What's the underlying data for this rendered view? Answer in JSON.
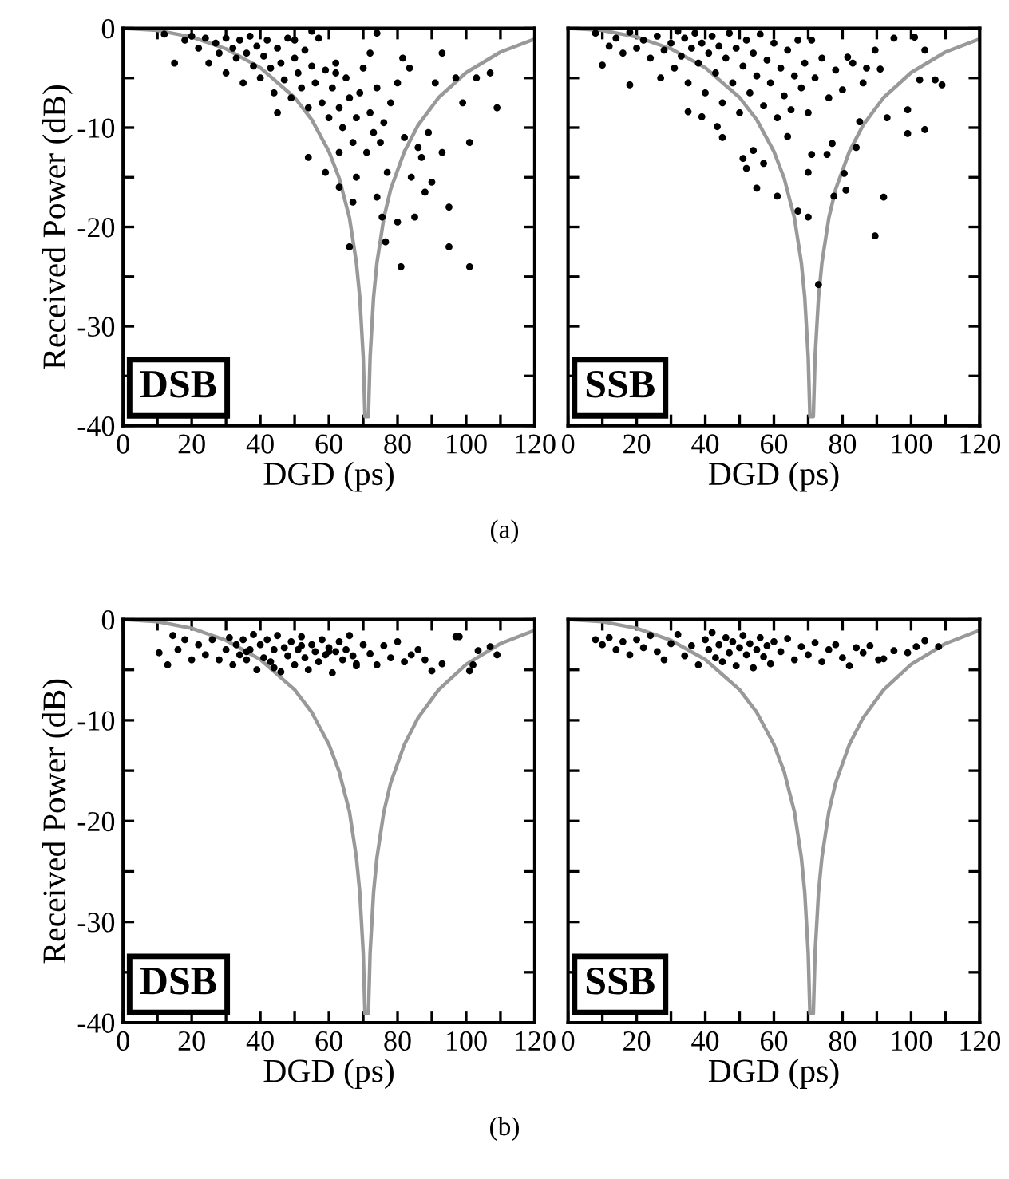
{
  "chart_data": [
    {
      "type": "scatter",
      "xlabel": "DGD (ps)",
      "ylabel": "Received Power (dB)",
      "xlim": [
        0,
        120
      ],
      "ylim": [
        -40,
        0
      ],
      "xticks": [
        0,
        {
          "value": 10,
          "label": null
        },
        20,
        {
          "value": 30,
          "label": null
        },
        40,
        {
          "value": 50,
          "label": null
        },
        60,
        {
          "value": 70,
          "label": null
        },
        80,
        {
          "value": 90,
          "label": null
        },
        100,
        {
          "value": 110,
          "label": null
        },
        120
      ],
      "yticks": [
        -40,
        {
          "value": -35,
          "label": null
        },
        -30,
        {
          "value": -25,
          "label": null
        },
        -20,
        {
          "value": -15,
          "label": null
        },
        -10,
        {
          "value": -5,
          "label": null
        },
        0
      ],
      "annotations": [
        "DSB",
        "(a)"
      ],
      "series": [
        {
          "type": "line",
          "color": "#999999",
          "line_style": "solid",
          "x": [
            0,
            10,
            20,
            30,
            40,
            50,
            55,
            60,
            63,
            66,
            68,
            69,
            70,
            70.5,
            71.5,
            72,
            73,
            74,
            76,
            78,
            82,
            86,
            92,
            100,
            110,
            120
          ],
          "values": [
            0,
            -0.21,
            -0.88,
            -2.07,
            -3.97,
            -6.97,
            -9.21,
            -12.4,
            -15.1,
            -19.1,
            -23.6,
            -27.1,
            -33.1,
            -39.1,
            -39.1,
            -33.1,
            -27.1,
            -23.6,
            -19.1,
            -16.2,
            -12.4,
            -9.75,
            -6.97,
            -4.46,
            -2.39,
            -1.07
          ]
        },
        {
          "color": "#000000",
          "marker": "circle",
          "x": [
            12,
            18,
            20,
            22,
            24,
            25,
            27,
            28,
            30,
            30,
            32,
            33,
            34,
            35,
            36,
            37,
            38,
            39,
            40,
            41,
            42,
            43,
            44,
            45,
            46,
            47,
            48,
            49,
            50,
            51,
            52,
            53,
            54,
            55,
            56,
            57,
            58,
            59,
            60,
            61,
            62,
            63,
            64,
            65,
            66,
            67,
            68,
            69,
            70,
            71,
            72,
            73,
            74,
            75,
            76,
            78,
            63,
            62,
            55,
            50,
            15,
            45,
            54,
            59,
            63,
            66,
            67,
            68,
            74,
            72,
            74,
            75.5,
            76.5,
            77,
            80,
            81,
            81.5,
            80,
            83.5,
            84,
            85,
            86,
            87,
            88,
            89,
            90,
            91,
            93,
            93,
            95,
            95,
            97,
            99,
            101,
            101,
            103,
            107,
            109,
            82
          ],
          "values": [
            -0.6,
            -1.2,
            -0.8,
            -2,
            -1,
            -3.5,
            -1.5,
            -2.5,
            -1,
            -4.5,
            -2,
            -3,
            -1.2,
            -5.5,
            -2.5,
            -0.8,
            -3.8,
            -1.8,
            -5,
            -2.8,
            -1.2,
            -4,
            -6.5,
            -2,
            -3.5,
            -5.2,
            -1,
            -7,
            -3,
            -4.5,
            -6,
            -2.2,
            -8,
            -3.8,
            -5.5,
            -1,
            -7.5,
            -4.2,
            -9,
            -6,
            -3.5,
            -8,
            -10,
            -5,
            -7,
            -11.5,
            -9,
            -6.5,
            -4,
            -12.5,
            -8.5,
            -10.5,
            -6,
            -11.5,
            -9.5,
            -7.5,
            -12.5,
            -4.5,
            -0.3,
            -1.2,
            -3.5,
            -8.5,
            -13,
            -14.5,
            -16,
            -22,
            -17.5,
            -15,
            -0.5,
            -2.5,
            -17,
            -19,
            -21.5,
            -14.5,
            -19.5,
            -24,
            -3,
            -5.5,
            -4,
            -15,
            -19,
            -12,
            -13,
            -16.5,
            -10.5,
            -15.5,
            -5.5,
            -12.5,
            -2.5,
            -18,
            -22,
            -5,
            -7.5,
            -24,
            -11.5,
            -5,
            -4.5,
            -8,
            -11
          ]
        }
      ]
    },
    {
      "type": "scatter",
      "xlabel": "DGD (ps)",
      "xlim": [
        0,
        120
      ],
      "ylim": [
        -40,
        0
      ],
      "tick_labels": "x",
      "xticks": [
        0,
        {
          "value": 10,
          "label": null
        },
        20,
        {
          "value": 30,
          "label": null
        },
        40,
        {
          "value": 50,
          "label": null
        },
        60,
        {
          "value": 70,
          "label": null
        },
        80,
        {
          "value": 90,
          "label": null
        },
        100,
        {
          "value": 110,
          "label": null
        },
        120
      ],
      "yticks": [
        -40,
        {
          "value": -35,
          "label": null
        },
        -30,
        {
          "value": -25,
          "label": null
        },
        -20,
        {
          "value": -15,
          "label": null
        },
        -10,
        {
          "value": -5,
          "label": null
        },
        0
      ],
      "annotations": [
        "SSB"
      ],
      "series": [
        {
          "type": "line",
          "color": "#999999",
          "line_style": "solid",
          "x": [
            0,
            10,
            20,
            30,
            40,
            50,
            55,
            60,
            63,
            66,
            68,
            69,
            70,
            70.5,
            71.5,
            72,
            73,
            74,
            76,
            78,
            82,
            86,
            92,
            100,
            110,
            120
          ],
          "values": [
            0,
            -0.21,
            -0.88,
            -2.07,
            -3.97,
            -6.97,
            -9.21,
            -12.4,
            -15.1,
            -19.1,
            -23.6,
            -27.1,
            -33.1,
            -39.1,
            -39.1,
            -33.1,
            -27.1,
            -23.6,
            -19.1,
            -16.2,
            -12.4,
            -9.75,
            -6.97,
            -4.46,
            -2.39,
            -1.07
          ]
        },
        {
          "color": "#000000",
          "marker": "circle",
          "x": [
            8,
            10,
            12,
            14,
            16,
            18,
            20,
            22,
            24,
            26,
            27,
            28,
            30,
            31,
            32,
            33,
            34,
            35,
            36,
            37,
            38,
            39,
            40,
            41,
            42,
            43,
            44,
            45,
            46,
            47,
            48,
            49,
            50,
            51,
            52,
            53,
            54,
            55,
            56,
            57,
            58,
            59,
            60,
            61,
            62,
            63,
            64,
            65,
            66,
            67,
            68,
            69,
            70,
            72,
            74,
            76,
            78,
            80,
            83,
            86,
            18,
            35,
            39,
            43.5,
            45,
            51,
            52,
            54,
            55,
            57,
            61,
            64,
            67,
            70,
            70,
            73,
            71,
            75.5,
            77,
            81,
            80.5,
            77.5,
            84,
            89.5,
            92,
            85,
            93,
            99,
            99,
            104,
            107,
            109,
            102.5,
            104,
            101,
            95,
            89.5,
            87,
            91,
            81.5,
            71
          ],
          "values": [
            -0.5,
            -3.7,
            -1.8,
            -1,
            -2.5,
            -0.4,
            -2,
            -1.2,
            -3,
            -0.8,
            -5,
            -2.2,
            -1.5,
            -4,
            -0.3,
            -2.8,
            -1,
            -5.5,
            -2,
            -0.5,
            -3.5,
            -1.5,
            -6.5,
            -2.5,
            -0.8,
            -4.5,
            -1.8,
            -7.5,
            -3,
            -0.5,
            -5.5,
            -2,
            -8.5,
            -3.8,
            -1.2,
            -6.5,
            -2.5,
            -4.8,
            -0.6,
            -7.8,
            -3.2,
            -5.5,
            -1.5,
            -9,
            -4,
            -6.8,
            -2.2,
            -8.2,
            -4.8,
            -1.2,
            -6,
            -3.5,
            -8.5,
            -5,
            -3,
            -7,
            -4.2,
            -6.2,
            -3.5,
            -5.5,
            -5.7,
            -8.4,
            -8.9,
            -9.9,
            -11,
            -13.1,
            -14.1,
            -12.3,
            -16.1,
            -13.6,
            -16.9,
            -10.9,
            -18.4,
            -19,
            -14.5,
            -25.8,
            -12.7,
            -12.7,
            -11.6,
            -16.3,
            -14.6,
            -16.9,
            -12,
            -20.9,
            -17,
            -9.4,
            -9,
            -8.2,
            -10.6,
            -10.2,
            -5.2,
            -5.7,
            -5.2,
            -2.2,
            -0.9,
            -1,
            -2.2,
            -4,
            -4.1,
            -2.9,
            -1.2
          ]
        }
      ]
    },
    {
      "type": "scatter",
      "xlabel": "DGD (ps)",
      "ylabel": "Received Power (dB)",
      "xlim": [
        0,
        120
      ],
      "ylim": [
        -40,
        0
      ],
      "xticks": [
        0,
        {
          "value": 10,
          "label": null
        },
        20,
        {
          "value": 30,
          "label": null
        },
        40,
        {
          "value": 50,
          "label": null
        },
        60,
        {
          "value": 70,
          "label": null
        },
        80,
        {
          "value": 90,
          "label": null
        },
        100,
        {
          "value": 110,
          "label": null
        },
        120
      ],
      "yticks": [
        -40,
        {
          "value": -35,
          "label": null
        },
        -30,
        {
          "value": -25,
          "label": null
        },
        -20,
        {
          "value": -15,
          "label": null
        },
        -10,
        {
          "value": -5,
          "label": null
        },
        0
      ],
      "annotations": [
        "DSB",
        "(b)"
      ],
      "series": [
        {
          "type": "line",
          "color": "#999999",
          "line_style": "solid",
          "x": [
            0,
            10,
            20,
            30,
            40,
            50,
            55,
            60,
            63,
            66,
            68,
            69,
            70,
            70.5,
            71.5,
            72,
            73,
            74,
            76,
            78,
            82,
            86,
            92,
            100,
            110,
            120
          ],
          "values": [
            0,
            -0.21,
            -0.88,
            -2.07,
            -3.97,
            -6.97,
            -9.21,
            -12.4,
            -15.1,
            -19.1,
            -23.6,
            -27.1,
            -33.1,
            -39.1,
            -39.1,
            -33.1,
            -27.1,
            -23.6,
            -19.1,
            -16.2,
            -12.4,
            -9.75,
            -6.97,
            -4.46,
            -2.39,
            -1.07
          ]
        },
        {
          "color": "#000000",
          "marker": "circle",
          "x": [
            16,
            18,
            20,
            22,
            24,
            26,
            28,
            30,
            31,
            32,
            33,
            34,
            35,
            36,
            37,
            38,
            39,
            40,
            41,
            42,
            43,
            44,
            45,
            46,
            47,
            48,
            49,
            50,
            51,
            52,
            53,
            54,
            55,
            56,
            57,
            58,
            59,
            60,
            61,
            62,
            63,
            64,
            65,
            66,
            67,
            68,
            70,
            72,
            74,
            76,
            78,
            80,
            82,
            84,
            86,
            88,
            36,
            44,
            52,
            60,
            68,
            10.5,
            13,
            14.5,
            98,
            103.5,
            107,
            109,
            101,
            102,
            90,
            93,
            97
          ],
          "values": [
            -3,
            -2,
            -4,
            -2.5,
            -3.5,
            -2,
            -4,
            -3,
            -1.8,
            -4.5,
            -2.5,
            -3.5,
            -2,
            -4,
            -3,
            -1.5,
            -5,
            -2.5,
            -3.8,
            -2,
            -4.2,
            -3,
            -1.6,
            -5.2,
            -2.8,
            -3.6,
            -2.2,
            -4.5,
            -3,
            -1.7,
            -3.8,
            -5,
            -2.5,
            -3.2,
            -4.2,
            -2,
            -3.5,
            -2.8,
            -5.3,
            -3.2,
            -2.2,
            -4,
            -3,
            -1.6,
            -3.6,
            -4.6,
            -2.5,
            -3.4,
            -4.5,
            -2.6,
            -3.8,
            -2.2,
            -4.2,
            -3.5,
            -3,
            -4,
            -3.2,
            -4.8,
            -2.6,
            -3.2,
            -4.4,
            -3.3,
            -4.5,
            -1.6,
            -1.7,
            -3.1,
            -2.7,
            -3.5,
            -5.1,
            -4.5,
            -5.1,
            -4.4,
            -1.7
          ]
        }
      ]
    },
    {
      "type": "scatter",
      "xlabel": "DGD (ps)",
      "xlim": [
        0,
        120
      ],
      "ylim": [
        -40,
        0
      ],
      "tick_labels": "x",
      "xticks": [
        0,
        {
          "value": 10,
          "label": null
        },
        20,
        {
          "value": 30,
          "label": null
        },
        40,
        {
          "value": 50,
          "label": null
        },
        60,
        {
          "value": 70,
          "label": null
        },
        80,
        {
          "value": 90,
          "label": null
        },
        100,
        {
          "value": 110,
          "label": null
        },
        120
      ],
      "yticks": [
        -40,
        {
          "value": -35,
          "label": null
        },
        -30,
        {
          "value": -25,
          "label": null
        },
        -20,
        {
          "value": -15,
          "label": null
        },
        -10,
        {
          "value": -5,
          "label": null
        },
        0
      ],
      "annotations": [
        "SSB"
      ],
      "series": [
        {
          "type": "line",
          "color": "#999999",
          "line_style": "solid",
          "x": [
            0,
            10,
            20,
            30,
            40,
            50,
            55,
            60,
            63,
            66,
            68,
            69,
            70,
            70.5,
            71.5,
            72,
            73,
            74,
            76,
            78,
            82,
            86,
            92,
            100,
            110,
            120
          ],
          "values": [
            0,
            -0.21,
            -0.88,
            -2.07,
            -3.97,
            -6.97,
            -9.21,
            -12.4,
            -15.1,
            -19.1,
            -23.6,
            -27.1,
            -33.1,
            -39.1,
            -39.1,
            -33.1,
            -27.1,
            -23.6,
            -19.1,
            -16.2,
            -12.4,
            -9.75,
            -6.97,
            -4.46,
            -2.39,
            -1.07
          ]
        },
        {
          "color": "#000000",
          "marker": "circle",
          "x": [
            8,
            10,
            12,
            14,
            16,
            18,
            20,
            22,
            24,
            26,
            28,
            30,
            32,
            34,
            36,
            38,
            40,
            41,
            42,
            43,
            44,
            45,
            46,
            47,
            48,
            49,
            50,
            51,
            52,
            53,
            54,
            55,
            56,
            57,
            58,
            59,
            60,
            62,
            64,
            66,
            68,
            70,
            72,
            74,
            76,
            78,
            80,
            82,
            84,
            86,
            88,
            92,
            95,
            104,
            108,
            101.5,
            99,
            90.5
          ],
          "values": [
            -2,
            -2.5,
            -1.8,
            -3,
            -2.2,
            -3.5,
            -2,
            -2.8,
            -1.6,
            -3.2,
            -4,
            -2.4,
            -1.5,
            -3.6,
            -2.6,
            -4.5,
            -2,
            -3,
            -1.3,
            -3.8,
            -2.5,
            -4.2,
            -1.8,
            -3.3,
            -2.2,
            -4.6,
            -2.8,
            -1.6,
            -3.5,
            -2.4,
            -4.8,
            -3,
            -1.8,
            -3.7,
            -2.6,
            -4.4,
            -2.2,
            -3.2,
            -1.9,
            -4,
            -2.7,
            -3.5,
            -2.3,
            -4.2,
            -3,
            -2.5,
            -3.8,
            -4.6,
            -2.8,
            -3.3,
            -2.6,
            -3.9,
            -3.1,
            -2.1,
            -2.7,
            -2.7,
            -3.3,
            -4
          ]
        }
      ]
    }
  ]
}
